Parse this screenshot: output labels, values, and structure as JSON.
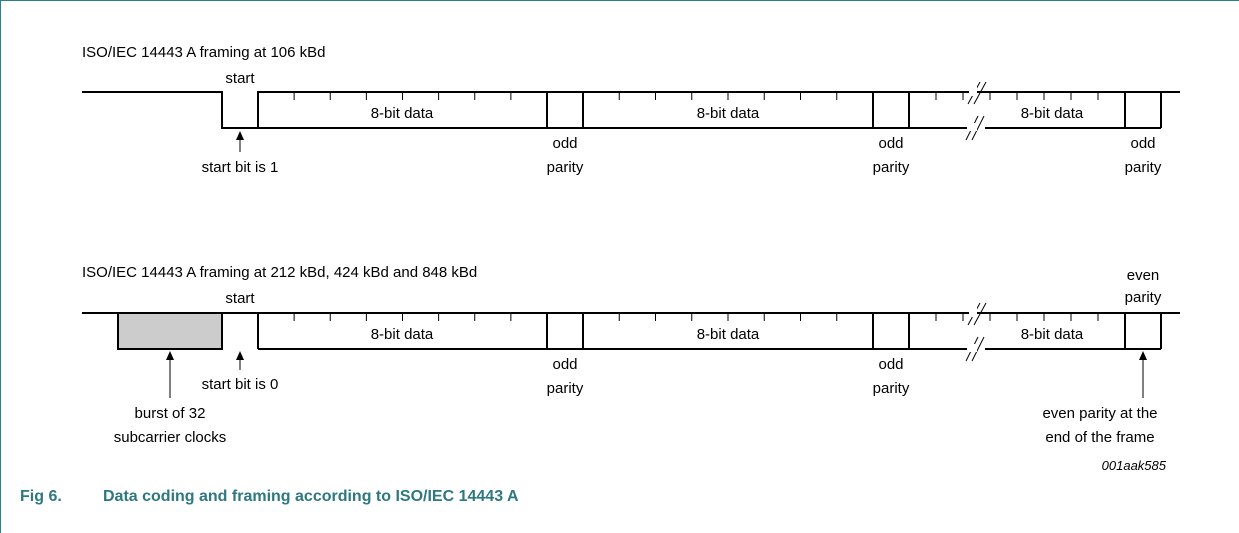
{
  "diagram": {
    "row1": {
      "title": "ISO/IEC 14443 A framing at 106 kBd",
      "start_label": "start",
      "data_labels": [
        "8-bit data",
        "8-bit data",
        "8-bit data"
      ],
      "odd_label": "odd",
      "parity_label": "parity",
      "start_bit_note": "start bit is 1"
    },
    "row2": {
      "title": "ISO/IEC 14443 A framing at 212 kBd, 424 kBd and 848 kBd",
      "start_label": "start",
      "data_labels": [
        "8-bit data",
        "8-bit data",
        "8-bit data"
      ],
      "odd_label": "odd",
      "parity_label": "parity",
      "even_label": "even",
      "start_bit_note": "start bit is 0",
      "burst_note_line1": "burst of 32",
      "burst_note_line2": "subcarrier clocks",
      "even_note_line1": "even parity at the",
      "even_note_line2": "end of the frame",
      "burst_fill": "#cccccc"
    },
    "figure_tag": "001aak585"
  },
  "caption": {
    "number": "Fig 6.",
    "title": "Data coding and framing according to ISO/IEC 14443 A",
    "color": "#2e7882"
  }
}
